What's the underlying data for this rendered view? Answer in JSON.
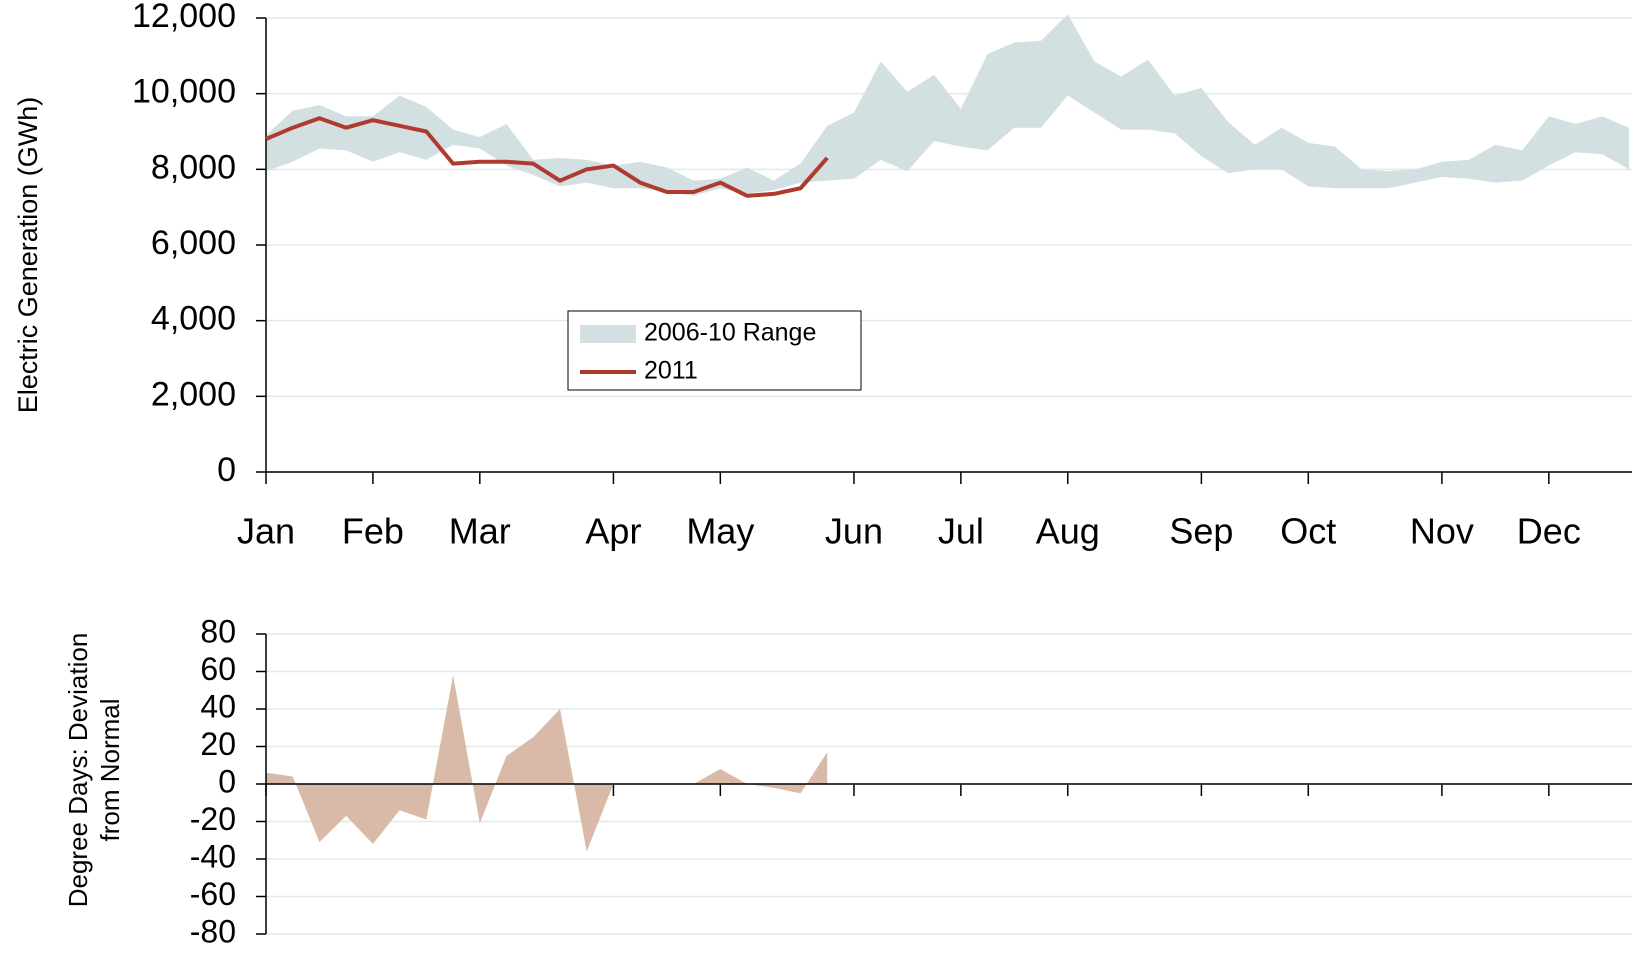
{
  "chart_data": [
    {
      "type": "line",
      "ylabel": "Electric Generation (GWh)",
      "categories": [
        "Jan",
        null,
        null,
        null,
        "Feb",
        null,
        null,
        null,
        "Mar",
        null,
        null,
        null,
        null,
        "Apr",
        null,
        null,
        null,
        "May",
        null,
        null,
        null,
        null,
        "Jun",
        null,
        null,
        null,
        "Jul",
        null,
        null,
        null,
        "Aug",
        null,
        null,
        null,
        null,
        "Sep",
        null,
        null,
        null,
        "Oct",
        null,
        null,
        null,
        null,
        "Nov",
        null,
        null,
        null,
        "Dec",
        null,
        null,
        null
      ],
      "series": [
        {
          "name": "2006-10 Range",
          "color": "#d2e0e2",
          "low": [
            7950,
            8200,
            8550,
            8500,
            8200,
            8450,
            8250,
            8650,
            8550,
            8100,
            7850,
            7550,
            7650,
            7500,
            7500,
            7400,
            7300,
            7500,
            7350,
            7450,
            7650,
            7700,
            7750,
            8250,
            7950,
            8750,
            8600,
            8500,
            9100,
            9100,
            9950,
            9500,
            9050,
            9050,
            8950,
            8350,
            7900,
            8000,
            8000,
            7550,
            7500,
            7500,
            7500,
            7650,
            7800,
            7750,
            7650,
            7700,
            8100,
            8450,
            8400,
            8000
          ],
          "high": [
            8900,
            9550,
            9700,
            9400,
            9400,
            9950,
            9650,
            9050,
            8850,
            9200,
            8250,
            8300,
            8250,
            8100,
            8200,
            8050,
            7700,
            7750,
            8050,
            7700,
            8150,
            9150,
            9500,
            10850,
            10050,
            10500,
            9600,
            11050,
            11350,
            11400,
            12100,
            10850,
            10450,
            10900,
            9950,
            10150,
            9250,
            8650,
            9100,
            8700,
            8600,
            8000,
            7950,
            8000,
            8200,
            8250,
            8650,
            8500,
            9400,
            9200,
            9400,
            9100
          ]
        },
        {
          "name": "2011",
          "color": "#b03a2e",
          "values": [
            8800,
            9100,
            9350,
            9100,
            9300,
            9150,
            9000,
            8150,
            8200,
            8200,
            8150,
            7700,
            8000,
            8100,
            7650,
            7400,
            7400,
            7650,
            7300,
            7350,
            7500,
            8300,
            null,
            null,
            null,
            null,
            null,
            null,
            null,
            null,
            null,
            null,
            null,
            null,
            null,
            null,
            null,
            null,
            null,
            null,
            null,
            null,
            null,
            null,
            null,
            null,
            null,
            null,
            null,
            null,
            null,
            null
          ]
        }
      ],
      "ylim": [
        0,
        12000
      ],
      "yticks": [
        0,
        {
          "value": 2000,
          "label": "2,000"
        },
        {
          "value": 4000,
          "label": "4,000"
        },
        {
          "value": 6000,
          "label": "6,000"
        },
        {
          "value": 8000,
          "label": "8,000"
        },
        {
          "value": 10000,
          "label": "10,000"
        },
        {
          "value": 12000,
          "label": "12,000"
        }
      ],
      "grid": true
    },
    {
      "type": "area",
      "ylabel": [
        "Degree Days: Deviation",
        "from Normal"
      ],
      "color": "#d9baa9",
      "values": [
        6,
        4,
        -31,
        -17,
        -32,
        -14,
        -19,
        58,
        -21,
        15,
        25,
        40,
        -36,
        0,
        0,
        0,
        0,
        8,
        0,
        -2,
        -5,
        17,
        null,
        null,
        null,
        null,
        null,
        null,
        null,
        null,
        null,
        null,
        null,
        null,
        null,
        null,
        null,
        null,
        null,
        null,
        null,
        null,
        null,
        null,
        null,
        null,
        null,
        null,
        null,
        null,
        null,
        null
      ],
      "ylim": [
        -80,
        80
      ],
      "yticks": [
        -80,
        -60,
        -40,
        -20,
        0,
        20,
        40,
        60,
        80
      ],
      "grid": true
    }
  ]
}
